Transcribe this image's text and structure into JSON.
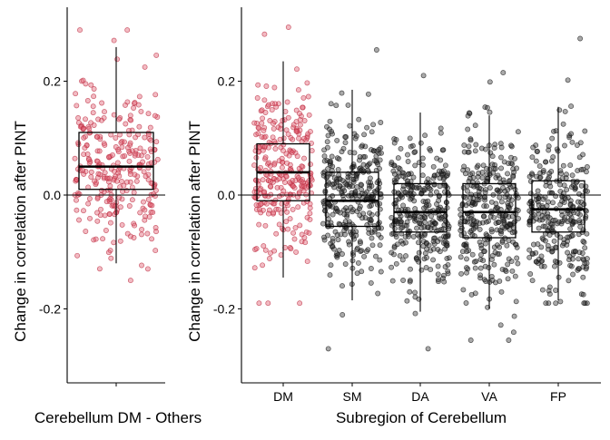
{
  "chart_data": [
    {
      "type": "box",
      "title": "",
      "xlabel": "Cerebellum DM - Others",
      "ylabel": "Change in correlation after PINT",
      "ylim": [
        -0.33,
        0.33
      ],
      "yticks": [
        -0.2,
        0.0,
        0.2
      ],
      "ytick_labels": [
        "-0.2",
        "0.0",
        "0.2"
      ],
      "reference_line_y": 0.0,
      "grid": false,
      "legend": "none",
      "boxes": [
        {
          "category": "",
          "color": "#e05a6e",
          "whisker_low": -0.12,
          "q1": 0.01,
          "median": 0.05,
          "q3": 0.11,
          "whisker_high": 0.26,
          "n_points": 300,
          "point_range": [
            -0.15,
            0.29
          ]
        }
      ]
    },
    {
      "type": "box",
      "title": "",
      "xlabel": "Subregion of Cerebellum",
      "ylabel": "Change in correlation after PINT",
      "ylim": [
        -0.33,
        0.33
      ],
      "yticks": [
        -0.2,
        0.0,
        0.2
      ],
      "ytick_labels": [
        "-0.2",
        "0.0",
        "0.2"
      ],
      "reference_line_y": 0.0,
      "grid": false,
      "legend": "none",
      "categories": [
        "DM",
        "SM",
        "DA",
        "VA",
        "FP"
      ],
      "boxes": [
        {
          "category": "DM",
          "color": "#e05a6e",
          "whisker_low": -0.145,
          "q1": -0.01,
          "median": 0.04,
          "q3": 0.09,
          "whisker_high": 0.235,
          "n_points": 300,
          "point_range": [
            -0.19,
            0.295
          ]
        },
        {
          "category": "SM",
          "color": "#3a3a3a",
          "whisker_low": -0.185,
          "q1": -0.055,
          "median": -0.01,
          "q3": 0.04,
          "whisker_high": 0.185,
          "n_points": 330,
          "point_range": [
            -0.27,
            0.255
          ]
        },
        {
          "category": "DA",
          "color": "#3a3a3a",
          "whisker_low": -0.205,
          "q1": -0.065,
          "median": -0.03,
          "q3": 0.02,
          "whisker_high": 0.145,
          "n_points": 330,
          "point_range": [
            -0.27,
            0.21
          ]
        },
        {
          "category": "VA",
          "color": "#3a3a3a",
          "whisker_low": -0.2,
          "q1": -0.075,
          "median": -0.03,
          "q3": 0.02,
          "whisker_high": 0.14,
          "n_points": 330,
          "point_range": [
            -0.255,
            0.215
          ]
        },
        {
          "category": "FP",
          "color": "#3a3a3a",
          "whisker_low": -0.185,
          "q1": -0.065,
          "median": -0.025,
          "q3": 0.025,
          "whisker_high": 0.155,
          "n_points": 300,
          "point_range": [
            -0.19,
            0.275
          ]
        }
      ]
    }
  ]
}
